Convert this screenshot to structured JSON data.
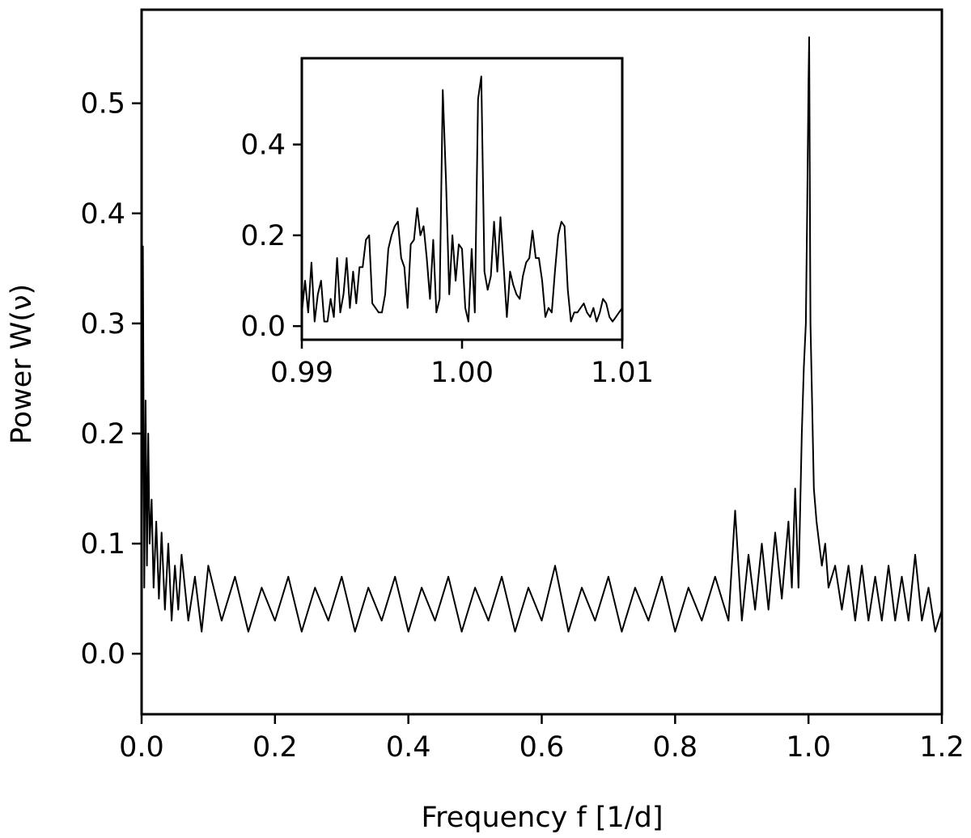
{
  "chart_data": [
    {
      "type": "line",
      "role": "main",
      "xlabel": "Frequency f [1/d]",
      "ylabel": "Power W(ν)",
      "xlim": [
        0.0,
        1.2
      ],
      "ylim": [
        -0.055,
        0.585
      ],
      "xticks": [
        "0.0",
        "0.2",
        "0.4",
        "0.6",
        "0.8",
        "1.0",
        "1.2"
      ],
      "yticks": [
        "0.0",
        "0.1",
        "0.2",
        "0.3",
        "0.4",
        "0.5"
      ],
      "grid": false,
      "series": [
        {
          "x": [
            0.0,
            0.002,
            0.004,
            0.006,
            0.008,
            0.01,
            0.012,
            0.015,
            0.018,
            0.022,
            0.026,
            0.03,
            0.035,
            0.04,
            0.045,
            0.05,
            0.055,
            0.06,
            0.07,
            0.08,
            0.09,
            0.1,
            0.12,
            0.14,
            0.16,
            0.18,
            0.2,
            0.22,
            0.24,
            0.26,
            0.28,
            0.3,
            0.32,
            0.34,
            0.36,
            0.38,
            0.4,
            0.42,
            0.44,
            0.46,
            0.48,
            0.5,
            0.52,
            0.54,
            0.56,
            0.58,
            0.6,
            0.62,
            0.64,
            0.66,
            0.68,
            0.7,
            0.72,
            0.74,
            0.76,
            0.78,
            0.8,
            0.82,
            0.84,
            0.86,
            0.88,
            0.89,
            0.9,
            0.91,
            0.92,
            0.93,
            0.94,
            0.95,
            0.96,
            0.97,
            0.975,
            0.98,
            0.985,
            0.99,
            0.993,
            0.996,
            0.998,
            1.0,
            1.001,
            1.003,
            1.005,
            1.008,
            1.012,
            1.016,
            1.02,
            1.025,
            1.03,
            1.04,
            1.05,
            1.06,
            1.07,
            1.08,
            1.09,
            1.1,
            1.11,
            1.12,
            1.13,
            1.14,
            1.15,
            1.16,
            1.17,
            1.18,
            1.19,
            1.2
          ],
          "y": [
            0.005,
            0.37,
            0.06,
            0.23,
            0.08,
            0.2,
            0.1,
            0.14,
            0.06,
            0.12,
            0.05,
            0.11,
            0.04,
            0.1,
            0.03,
            0.08,
            0.04,
            0.09,
            0.03,
            0.07,
            0.02,
            0.08,
            0.03,
            0.07,
            0.02,
            0.06,
            0.03,
            0.07,
            0.02,
            0.06,
            0.03,
            0.07,
            0.02,
            0.06,
            0.03,
            0.07,
            0.02,
            0.06,
            0.03,
            0.07,
            0.02,
            0.06,
            0.03,
            0.07,
            0.02,
            0.06,
            0.03,
            0.08,
            0.02,
            0.06,
            0.03,
            0.07,
            0.02,
            0.06,
            0.03,
            0.07,
            0.02,
            0.06,
            0.03,
            0.07,
            0.03,
            0.13,
            0.03,
            0.09,
            0.04,
            0.1,
            0.04,
            0.11,
            0.05,
            0.12,
            0.06,
            0.15,
            0.06,
            0.2,
            0.26,
            0.3,
            0.4,
            0.52,
            0.56,
            0.3,
            0.24,
            0.15,
            0.12,
            0.1,
            0.08,
            0.1,
            0.06,
            0.08,
            0.04,
            0.08,
            0.03,
            0.08,
            0.03,
            0.07,
            0.03,
            0.08,
            0.03,
            0.07,
            0.03,
            0.09,
            0.03,
            0.06,
            0.02,
            0.04
          ]
        }
      ]
    },
    {
      "type": "line",
      "role": "inset",
      "xlim": [
        0.99,
        1.01
      ],
      "ylim": [
        -0.03,
        0.59
      ],
      "xticks": [
        "0.99",
        "1.00",
        "1.01"
      ],
      "yticks": [
        "0.0",
        "0.2",
        "0.4"
      ],
      "grid": false,
      "series": [
        {
          "x": [
            0.99,
            0.9902,
            0.9904,
            0.9906,
            0.9908,
            0.991,
            0.9912,
            0.9914,
            0.9916,
            0.9918,
            0.992,
            0.9922,
            0.9924,
            0.9926,
            0.9928,
            0.993,
            0.9932,
            0.9934,
            0.9936,
            0.9938,
            0.994,
            0.9942,
            0.9944,
            0.9946,
            0.9948,
            0.995,
            0.9952,
            0.9954,
            0.9956,
            0.9958,
            0.996,
            0.9962,
            0.9964,
            0.9966,
            0.9968,
            0.997,
            0.9972,
            0.9974,
            0.9976,
            0.9978,
            0.998,
            0.9982,
            0.9984,
            0.9986,
            0.9988,
            0.999,
            0.9992,
            0.9994,
            0.9996,
            0.9998,
            1.0,
            1.0002,
            1.0004,
            1.0006,
            1.0008,
            1.001,
            1.0012,
            1.0014,
            1.0016,
            1.0018,
            1.002,
            1.0022,
            1.0024,
            1.0026,
            1.0028,
            1.003,
            1.0032,
            1.0034,
            1.0036,
            1.0038,
            1.004,
            1.0042,
            1.0044,
            1.0046,
            1.0048,
            1.005,
            1.0052,
            1.0054,
            1.0056,
            1.0058,
            1.006,
            1.0062,
            1.0064,
            1.0066,
            1.0068,
            1.007,
            1.0072,
            1.0074,
            1.0076,
            1.0078,
            1.008,
            1.0082,
            1.0084,
            1.0086,
            1.0088,
            1.009,
            1.0092,
            1.0094,
            1.0096,
            1.0098,
            1.01
          ],
          "y": [
            0.03,
            0.1,
            0.03,
            0.14,
            0.01,
            0.07,
            0.1,
            0.01,
            0.01,
            0.06,
            0.02,
            0.15,
            0.03,
            0.07,
            0.15,
            0.04,
            0.12,
            0.05,
            0.13,
            0.13,
            0.19,
            0.2,
            0.05,
            0.04,
            0.03,
            0.03,
            0.07,
            0.17,
            0.2,
            0.22,
            0.23,
            0.15,
            0.13,
            0.04,
            0.18,
            0.19,
            0.26,
            0.2,
            0.22,
            0.15,
            0.06,
            0.19,
            0.03,
            0.06,
            0.52,
            0.32,
            0.07,
            0.2,
            0.1,
            0.18,
            0.17,
            0.04,
            0.01,
            0.17,
            0.03,
            0.5,
            0.55,
            0.12,
            0.08,
            0.11,
            0.23,
            0.12,
            0.24,
            0.13,
            0.02,
            0.12,
            0.09,
            0.07,
            0.06,
            0.11,
            0.14,
            0.15,
            0.21,
            0.15,
            0.15,
            0.1,
            0.02,
            0.04,
            0.03,
            0.12,
            0.2,
            0.23,
            0.22,
            0.08,
            0.01,
            0.03,
            0.03,
            0.04,
            0.05,
            0.03,
            0.02,
            0.04,
            0.01,
            0.03,
            0.06,
            0.05,
            0.02,
            0.01,
            0.02,
            0.03,
            0.04
          ]
        }
      ]
    }
  ]
}
